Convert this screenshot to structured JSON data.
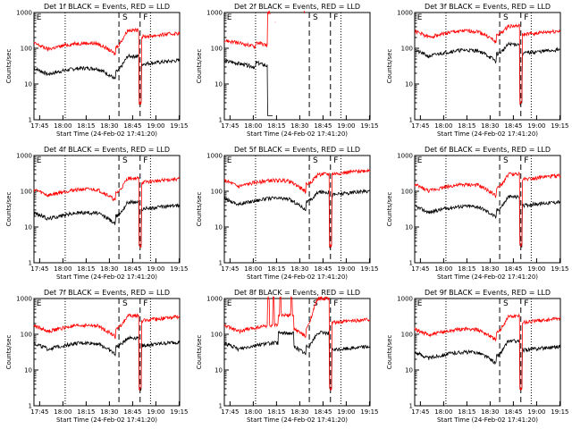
{
  "figure": {
    "background": "#ffffff",
    "events_color": "#000000",
    "lld_color": "#ff0000"
  },
  "chart_data": [
    {
      "id": 1,
      "type": "line",
      "title": "Det 1f BLACK = Events, RED = LLD",
      "xlabel": "Start Time (24-Feb-02 17:41:20)",
      "ylabel": "Counts/sec",
      "y_scale": "log",
      "ylim": [
        1,
        1000
      ],
      "yticks": [
        "1",
        "10",
        "100",
        "1000"
      ],
      "xlim": [
        0,
        42
      ],
      "xticks": [
        "17:45",
        "18:00",
        "18:15",
        "18:30",
        "18:45",
        "19:00",
        "19:15"
      ],
      "markers": {
        "E": "E",
        "S": "S",
        "F": "F",
        "dotted_x": [
          9,
          33.6
        ],
        "dashed_x": [
          24.5,
          30.6
        ]
      },
      "series": [
        {
          "name": "Events",
          "profile": "a",
          "base": 22,
          "peak": 60,
          "post": 45
        },
        {
          "name": "LLD",
          "profile": "a",
          "base": 110,
          "peak": 320,
          "post": 260
        }
      ]
    },
    {
      "id": 2,
      "type": "line",
      "title": "Det 2f BLACK = Events, RED = LLD",
      "xlabel": "Start Time (24-Feb-02 17:41:20)",
      "ylabel": "Counts/sec",
      "y_scale": "log",
      "ylim": [
        1,
        1000
      ],
      "yticks": [
        "1",
        "10",
        "100",
        "1000"
      ],
      "xlim": [
        0,
        42
      ],
      "xticks": [
        "17:45",
        "18:00",
        "18:15",
        "18:30",
        "18:45",
        "19:00",
        "19:15"
      ],
      "markers": {
        "E": "E",
        "S": "S",
        "F": "F",
        "dotted_x": [
          9,
          33.6
        ],
        "dashed_x": [
          24.5,
          30.6
        ]
      },
      "series": [
        {
          "name": "Events",
          "profile": "b",
          "base": 40,
          "peak": 40,
          "post": 0
        },
        {
          "name": "LLD",
          "profile": "b",
          "base": 150,
          "peak": 1000,
          "post": 0
        }
      ]
    },
    {
      "id": 3,
      "type": "line",
      "title": "Det 3f BLACK = Events, RED = LLD",
      "xlabel": "Start Time (24-Feb-02 17:41:20)",
      "ylabel": "Counts/sec",
      "y_scale": "log",
      "ylim": [
        1,
        1000
      ],
      "yticks": [
        "1",
        "10",
        "100",
        "1000"
      ],
      "xlim": [
        0,
        42
      ],
      "xticks": [
        "17:45",
        "18:00",
        "18:15",
        "18:30",
        "18:45",
        "19:00",
        "19:15"
      ],
      "markers": {
        "E": "E",
        "S": "S",
        "F": "F",
        "dotted_x": [
          9,
          33.6
        ],
        "dashed_x": [
          24.5,
          30.6
        ]
      },
      "series": [
        {
          "name": "Events",
          "profile": "c",
          "base": 70,
          "peak": 130,
          "post": 90
        },
        {
          "name": "LLD",
          "profile": "c",
          "base": 240,
          "peak": 420,
          "post": 300
        }
      ]
    },
    {
      "id": 4,
      "type": "line",
      "title": "Det 4f BLACK = Events, RED = LLD",
      "xlabel": "Start Time (24-Feb-02 17:41:20)",
      "ylabel": "Counts/sec",
      "y_scale": "log",
      "ylim": [
        1,
        1000
      ],
      "yticks": [
        "1",
        "10",
        "100",
        "1000"
      ],
      "xlim": [
        0,
        42
      ],
      "xticks": [
        "17:45",
        "18:00",
        "18:15",
        "18:30",
        "18:45",
        "19:00",
        "19:15"
      ],
      "markers": {
        "E": "E",
        "S": "S",
        "F": "F",
        "dotted_x": [
          9,
          33.6
        ],
        "dashed_x": [
          24.5,
          30.6
        ]
      },
      "series": [
        {
          "name": "Events",
          "profile": "a",
          "base": 20,
          "peak": 50,
          "post": 40
        },
        {
          "name": "LLD",
          "profile": "a",
          "base": 90,
          "peak": 230,
          "post": 220
        }
      ]
    },
    {
      "id": 5,
      "type": "line",
      "title": "Det 5f BLACK = Events, RED = LLD",
      "xlabel": "Start Time (24-Feb-02 17:41:20)",
      "ylabel": "Counts/sec",
      "y_scale": "log",
      "ylim": [
        1,
        1000
      ],
      "yticks": [
        "1",
        "10",
        "100",
        "1000"
      ],
      "xlim": [
        0,
        42
      ],
      "xticks": [
        "17:45",
        "18:00",
        "18:15",
        "18:30",
        "18:45",
        "19:00",
        "19:15"
      ],
      "markers": {
        "E": "E",
        "S": "S",
        "F": "F",
        "dotted_x": [
          9,
          33.6
        ],
        "dashed_x": [
          24.5,
          30.6
        ]
      },
      "series": [
        {
          "name": "Events",
          "profile": "c",
          "base": 50,
          "peak": 95,
          "post": 100
        },
        {
          "name": "LLD",
          "profile": "c",
          "base": 160,
          "peak": 300,
          "post": 380
        }
      ]
    },
    {
      "id": 6,
      "type": "line",
      "title": "Det 6f BLACK = Events, RED = LLD",
      "xlabel": "Start Time (24-Feb-02 17:41:20)",
      "ylabel": "Counts/sec",
      "y_scale": "log",
      "ylim": [
        1,
        1000
      ],
      "yticks": [
        "1",
        "10",
        "100",
        "1000"
      ],
      "xlim": [
        0,
        42
      ],
      "xticks": [
        "17:45",
        "18:00",
        "18:15",
        "18:30",
        "18:45",
        "19:00",
        "19:15"
      ],
      "markers": {
        "E": "E",
        "S": "S",
        "F": "F",
        "dotted_x": [
          9,
          33.6
        ],
        "dashed_x": [
          24.5,
          30.6
        ]
      },
      "series": [
        {
          "name": "Events",
          "profile": "a",
          "base": 30,
          "peak": 70,
          "post": 50
        },
        {
          "name": "LLD",
          "profile": "a",
          "base": 120,
          "peak": 300,
          "post": 270
        }
      ]
    },
    {
      "id": 7,
      "type": "line",
      "title": "Det 7f BLACK = Events, RED = LLD",
      "xlabel": "Start Time (24-Feb-02 17:41:20)",
      "ylabel": "Counts/sec",
      "y_scale": "log",
      "ylim": [
        1,
        1000
      ],
      "yticks": [
        "1",
        "10",
        "100",
        "1000"
      ],
      "xlim": [
        0,
        42
      ],
      "xticks": [
        "17:45",
        "18:00",
        "18:15",
        "18:30",
        "18:45",
        "19:00",
        "19:15"
      ],
      "markers": {
        "E": "E",
        "S": "S",
        "F": "F",
        "dotted_x": [
          9,
          33.6
        ],
        "dashed_x": [
          24.5,
          30.6
        ]
      },
      "series": [
        {
          "name": "Events",
          "profile": "a",
          "base": 45,
          "peak": 80,
          "post": 60
        },
        {
          "name": "LLD",
          "profile": "a",
          "base": 140,
          "peak": 330,
          "post": 300
        }
      ]
    },
    {
      "id": 8,
      "type": "line",
      "title": "Det 8f BLACK = Events, RED = LLD",
      "xlabel": "Start Time (24-Feb-02 17:41:20)",
      "ylabel": "Counts/sec",
      "y_scale": "log",
      "ylim": [
        1,
        1000
      ],
      "yticks": [
        "1",
        "10",
        "100",
        "1000"
      ],
      "xlim": [
        0,
        42
      ],
      "xticks": [
        "17:45",
        "18:00",
        "18:15",
        "18:30",
        "18:45",
        "19:00",
        "19:15"
      ],
      "markers": {
        "E": "E",
        "S": "S",
        "F": "F",
        "dotted_x": [
          9,
          33.6
        ],
        "dashed_x": [
          24.5,
          30.6
        ]
      },
      "series": [
        {
          "name": "Events",
          "profile": "d",
          "base": 45,
          "peak": 110,
          "post": 45
        },
        {
          "name": "LLD",
          "profile": "d",
          "base": 140,
          "peak": 1000,
          "post": 260
        }
      ]
    },
    {
      "id": 9,
      "type": "line",
      "title": "Det 9f BLACK = Events, RED = LLD",
      "xlabel": "Start Time (24-Feb-02 17:41:20)",
      "ylabel": "Counts/sec",
      "y_scale": "log",
      "ylim": [
        1,
        1000
      ],
      "yticks": [
        "1",
        "10",
        "100",
        "1000"
      ],
      "xlim": [
        0,
        42
      ],
      "xticks": [
        "17:45",
        "18:00",
        "18:15",
        "18:30",
        "18:45",
        "19:00",
        "19:15"
      ],
      "markers": {
        "E": "E",
        "S": "S",
        "F": "F",
        "dotted_x": [
          9,
          33.6
        ],
        "dashed_x": [
          24.5,
          30.6
        ]
      },
      "series": [
        {
          "name": "Events",
          "profile": "a",
          "base": 25,
          "peak": 65,
          "post": 45
        },
        {
          "name": "LLD",
          "profile": "a",
          "base": 110,
          "peak": 320,
          "post": 270
        }
      ]
    }
  ]
}
